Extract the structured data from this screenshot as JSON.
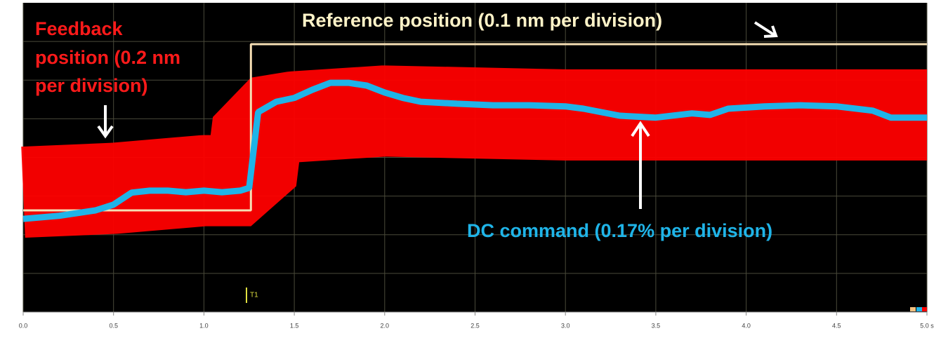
{
  "chart_data": {
    "type": "line",
    "xlim": [
      0,
      5
    ],
    "xticks": [
      {
        "value": 0,
        "label": "0.0"
      },
      {
        "value": 0.5,
        "label": "0.5"
      },
      {
        "value": 1,
        "label": "1.0"
      },
      {
        "value": 1.5,
        "label": "1.5"
      },
      {
        "value": 2,
        "label": "2.0"
      },
      {
        "value": 2.5,
        "label": "2.5"
      },
      {
        "value": 3,
        "label": "3.0"
      },
      {
        "value": 3.5,
        "label": "3.5"
      },
      {
        "value": 4,
        "label": "4.0"
      },
      {
        "value": 4.5,
        "label": "4.5"
      },
      {
        "value": 5,
        "label": "5.0 s"
      }
    ],
    "ylim": [
      0,
      8
    ],
    "series": [
      {
        "name": "Feedback position",
        "color": "#ff0000",
        "x": [
          0,
          0.5,
          1.0,
          1.25,
          1.26,
          1.3,
          1.5,
          2.0,
          3.0,
          4.0,
          5.0
        ],
        "values": [
          3.1,
          3.2,
          3.4,
          3.4,
          3.4,
          4.9,
          5.05,
          5.2,
          5.1,
          5.1,
          5.1
        ]
      },
      {
        "name": "Reference position",
        "color": "#f5deb3",
        "x": [
          0,
          1.26,
          1.26,
          5.0
        ],
        "values": [
          2.63,
          2.63,
          6.93,
          6.93
        ]
      },
      {
        "name": "DC command",
        "color": "#1fb4e8",
        "x": [
          0,
          0.2,
          0.4,
          0.5,
          0.6,
          0.7,
          0.8,
          0.9,
          1.0,
          1.1,
          1.2,
          1.25,
          1.3,
          1.4,
          1.5,
          1.6,
          1.7,
          1.8,
          1.9,
          2.0,
          2.1,
          2.2,
          2.4,
          2.6,
          2.8,
          3.0,
          3.1,
          3.3,
          3.5,
          3.7,
          3.8,
          3.9,
          4.1,
          4.3,
          4.5,
          4.7,
          4.8,
          5.0
        ],
        "values": [
          2.41,
          2.49,
          2.63,
          2.78,
          3.09,
          3.14,
          3.14,
          3.1,
          3.14,
          3.1,
          3.14,
          3.21,
          5.17,
          5.44,
          5.54,
          5.75,
          5.93,
          5.93,
          5.86,
          5.68,
          5.54,
          5.44,
          5.39,
          5.35,
          5.35,
          5.32,
          5.26,
          5.08,
          5.03,
          5.14,
          5.1,
          5.26,
          5.32,
          5.35,
          5.32,
          5.21,
          5.03,
          5.03
        ]
      }
    ],
    "annotations": {
      "feedback": [
        "Feedback",
        "position (0.2 nm",
        "per division)"
      ],
      "reference": "Reference position (0.1 nm per division)",
      "dc": "DC command (0.17% per division)",
      "marker": "T1"
    }
  }
}
